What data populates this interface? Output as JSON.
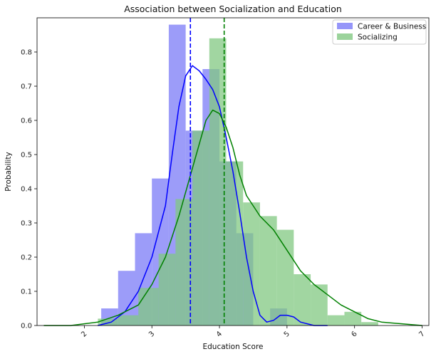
{
  "chart_data": {
    "type": "histogram",
    "title": "Association between Socialization and Education",
    "xlabel": "Education Score",
    "ylabel": "Probability",
    "xlim": [
      1.3,
      7.1
    ],
    "ylim": [
      0,
      0.9
    ],
    "xticks": [
      2,
      3,
      4,
      5,
      6,
      7
    ],
    "yticks": [
      0.0,
      0.1,
      0.2,
      0.3,
      0.4,
      0.5,
      0.6,
      0.7,
      0.8
    ],
    "legend_position": "top-right",
    "series": [
      {
        "name": "Career & Business",
        "color": "#0000ff",
        "hist_color": "#7b7bf7",
        "bin_edges": [
          2.25,
          2.5,
          2.75,
          3.0,
          3.25,
          3.5,
          3.75,
          4.0,
          4.25,
          4.5,
          4.75,
          5.0
        ],
        "densities": [
          0.05,
          0.16,
          0.27,
          0.43,
          0.88,
          0.57,
          0.75,
          0.48,
          0.27,
          0.0,
          0.05
        ],
        "kde_x": [
          2.2,
          2.4,
          2.6,
          2.8,
          3.0,
          3.2,
          3.3,
          3.4,
          3.5,
          3.6,
          3.7,
          3.8,
          3.9,
          4.0,
          4.1,
          4.2,
          4.3,
          4.4,
          4.5,
          4.6,
          4.7,
          4.8,
          4.9,
          5.0,
          5.1,
          5.2,
          5.4,
          5.6
        ],
        "kde_y": [
          0.0,
          0.01,
          0.04,
          0.1,
          0.2,
          0.35,
          0.5,
          0.64,
          0.73,
          0.76,
          0.745,
          0.72,
          0.69,
          0.64,
          0.55,
          0.45,
          0.33,
          0.2,
          0.1,
          0.03,
          0.01,
          0.015,
          0.03,
          0.03,
          0.025,
          0.01,
          0.0,
          0.0
        ],
        "mean": 3.57
      },
      {
        "name": "Socializing",
        "color": "#008000",
        "hist_color": "#82c882",
        "bin_edges": [
          2.2,
          2.5,
          2.8,
          3.1,
          3.35,
          3.6,
          3.85,
          4.1,
          4.35,
          4.6,
          4.85,
          5.1,
          5.35,
          5.6,
          5.85,
          6.1,
          6.35
        ],
        "densities": [
          0.02,
          0.03,
          0.11,
          0.21,
          0.37,
          0.57,
          0.84,
          0.48,
          0.36,
          0.32,
          0.28,
          0.15,
          0.12,
          0.03,
          0.04,
          0.01
        ],
        "kde_x": [
          1.4,
          1.8,
          2.2,
          2.5,
          2.8,
          3.0,
          3.2,
          3.4,
          3.6,
          3.8,
          3.9,
          4.0,
          4.1,
          4.2,
          4.3,
          4.4,
          4.6,
          4.8,
          5.0,
          5.2,
          5.4,
          5.6,
          5.8,
          6.0,
          6.2,
          6.4,
          6.7,
          7.0
        ],
        "kde_y": [
          0.0,
          0.0,
          0.01,
          0.03,
          0.06,
          0.12,
          0.2,
          0.32,
          0.46,
          0.6,
          0.63,
          0.62,
          0.58,
          0.52,
          0.44,
          0.38,
          0.32,
          0.28,
          0.22,
          0.16,
          0.12,
          0.09,
          0.06,
          0.04,
          0.02,
          0.01,
          0.005,
          0.0
        ],
        "mean": 4.07
      }
    ]
  }
}
